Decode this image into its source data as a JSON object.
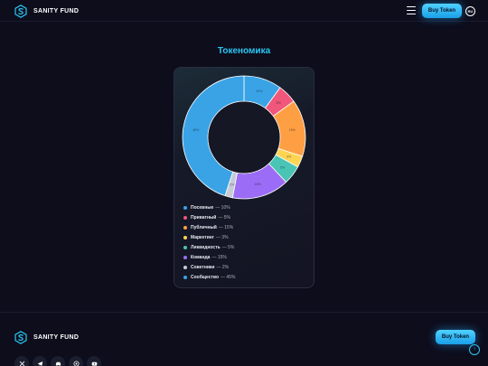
{
  "header": {
    "brand": "SANITY FUND",
    "buy_label": "Buy Token",
    "lang": "RU"
  },
  "page": {
    "title": "Токеномика"
  },
  "chart_data": {
    "type": "pie",
    "title": "Токеномика",
    "slices": [
      {
        "label": "Посевные",
        "value": 10,
        "value_text": "10%",
        "display": "— 10%",
        "color": "#3aa3e6"
      },
      {
        "label": "Приватный",
        "value": 5,
        "value_text": "5%",
        "display": "— 5%",
        "color": "#f0577a"
      },
      {
        "label": "Публичный",
        "value": 15,
        "value_text": "15%",
        "display": "— 15%",
        "color": "#ff9f43"
      },
      {
        "label": "Маркетинг",
        "value": 3,
        "value_text": "3%",
        "display": "— 3%",
        "color": "#ffd452"
      },
      {
        "label": "Ликвидность",
        "value": 5,
        "value_text": "5%",
        "display": "— 5%",
        "color": "#4ac4b5"
      },
      {
        "label": "Команда",
        "value": 15,
        "value_text": "15%",
        "display": "— 15%",
        "color": "#9b6cf5"
      },
      {
        "label": "Советники",
        "value": 2,
        "value_text": "2%",
        "display": "— 2%",
        "color": "#c7cbd6"
      },
      {
        "label": "Сообщество",
        "value": 45,
        "value_text": "45%",
        "display": "— 45%",
        "color": "#3aa3e6"
      }
    ]
  },
  "footer": {
    "brand": "SANITY FUND",
    "buy_label": "Buy Token",
    "up_icon": "↑",
    "socials": [
      "x-icon",
      "telegram-icon",
      "discord-icon",
      "github-icon",
      "youtube-icon"
    ]
  }
}
